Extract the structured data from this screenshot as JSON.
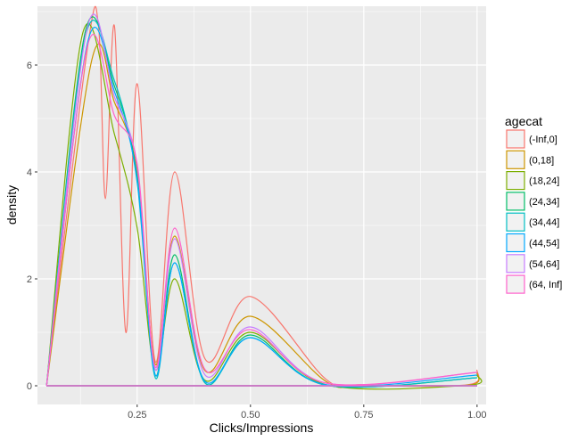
{
  "chart_data": {
    "type": "line",
    "xlabel": "Clicks/Impressions",
    "ylabel": "density",
    "xlim": [
      0.03,
      1.02
    ],
    "ylim": [
      -0.35,
      7.1
    ],
    "x_ticks": [
      0.25,
      0.5,
      0.75,
      1.0
    ],
    "x_tick_labels": [
      "0.25",
      "0.50",
      "0.75",
      "1.00"
    ],
    "y_ticks": [
      0,
      2,
      4,
      6
    ],
    "y_tick_labels": [
      "0",
      "2",
      "4",
      "6"
    ],
    "grid": true,
    "legend": {
      "title": "agecat",
      "position": "right"
    },
    "series": [
      {
        "name": "(-Inf,0]",
        "color": "#F8766D",
        "points": [
          [
            0.05,
            0
          ],
          [
            0.14,
            6.3
          ],
          [
            0.165,
            6.7
          ],
          [
            0.18,
            3.5
          ],
          [
            0.2,
            6.72
          ],
          [
            0.225,
            1.0
          ],
          [
            0.25,
            5.65
          ],
          [
            0.29,
            0.45
          ],
          [
            0.333,
            4.0
          ],
          [
            0.4,
            0.5
          ],
          [
            0.5,
            1.67
          ],
          [
            0.667,
            0.12
          ],
          [
            0.75,
            0.02
          ],
          [
            0.98,
            0.02
          ],
          [
            1.0,
            0.3
          ]
        ]
      },
      {
        "name": "(0,18]",
        "color": "#CD9600",
        "points": [
          [
            0.05,
            0
          ],
          [
            0.15,
            6.1
          ],
          [
            0.2,
            5.3
          ],
          [
            0.25,
            4.0
          ],
          [
            0.29,
            0.4
          ],
          [
            0.333,
            2.8
          ],
          [
            0.4,
            0.28
          ],
          [
            0.5,
            1.3
          ],
          [
            0.667,
            0.08
          ],
          [
            0.75,
            0.01
          ],
          [
            0.98,
            0.01
          ],
          [
            1.0,
            0.25
          ]
        ]
      },
      {
        "name": "(18,24]",
        "color": "#7CAE00",
        "points": [
          [
            0.05,
            0
          ],
          [
            0.13,
            6.6
          ],
          [
            0.2,
            4.7
          ],
          [
            0.25,
            2.95
          ],
          [
            0.29,
            0.3
          ],
          [
            0.333,
            2.0
          ],
          [
            0.4,
            0.1
          ],
          [
            0.5,
            1.0
          ],
          [
            0.667,
            0.02
          ],
          [
            0.98,
            0.01
          ],
          [
            1.0,
            0.2
          ]
        ]
      },
      {
        "name": "(24,34]",
        "color": "#00BE67",
        "points": [
          [
            0.05,
            0
          ],
          [
            0.135,
            6.6
          ],
          [
            0.2,
            5.6
          ],
          [
            0.25,
            3.9
          ],
          [
            0.29,
            0.2
          ],
          [
            0.333,
            2.45
          ],
          [
            0.4,
            0.05
          ],
          [
            0.5,
            0.95
          ],
          [
            0.667,
            0.01
          ],
          [
            1.0,
            0.15
          ]
        ]
      },
      {
        "name": "(34,44]",
        "color": "#00BFC4",
        "points": [
          [
            0.05,
            0
          ],
          [
            0.135,
            6.5
          ],
          [
            0.2,
            5.7
          ],
          [
            0.25,
            3.8
          ],
          [
            0.29,
            0.15
          ],
          [
            0.333,
            2.3
          ],
          [
            0.4,
            0.05
          ],
          [
            0.5,
            0.9
          ],
          [
            0.667,
            0.01
          ],
          [
            1.0,
            0.15
          ]
        ]
      },
      {
        "name": "(44,54]",
        "color": "#00A9FF",
        "points": [
          [
            0.05,
            0
          ],
          [
            0.14,
            6.4
          ],
          [
            0.2,
            5.5
          ],
          [
            0.25,
            3.85
          ],
          [
            0.29,
            0.2
          ],
          [
            0.333,
            2.3
          ],
          [
            0.4,
            0.08
          ],
          [
            0.5,
            0.9
          ],
          [
            0.667,
            0.02
          ],
          [
            1.0,
            0.2
          ]
        ]
      },
      {
        "name": "(54,64]",
        "color": "#C77CFF",
        "points": [
          [
            0.05,
            0
          ],
          [
            0.14,
            6.7
          ],
          [
            0.2,
            5.4
          ],
          [
            0.25,
            4.1
          ],
          [
            0.29,
            0.3
          ],
          [
            0.333,
            2.75
          ],
          [
            0.4,
            0.2
          ],
          [
            0.5,
            1.1
          ],
          [
            0.667,
            0.05
          ],
          [
            1.0,
            0.25
          ]
        ]
      },
      {
        "name": "(64, Inf]",
        "color": "#FF61CC",
        "points": [
          [
            0.05,
            0
          ],
          [
            0.14,
            6.35
          ],
          [
            0.2,
            5.05
          ],
          [
            0.25,
            4.15
          ],
          [
            0.29,
            0.35
          ],
          [
            0.333,
            2.95
          ],
          [
            0.4,
            0.3
          ],
          [
            0.5,
            1.05
          ],
          [
            0.667,
            0.05
          ],
          [
            1.0,
            0.25
          ]
        ]
      }
    ]
  }
}
